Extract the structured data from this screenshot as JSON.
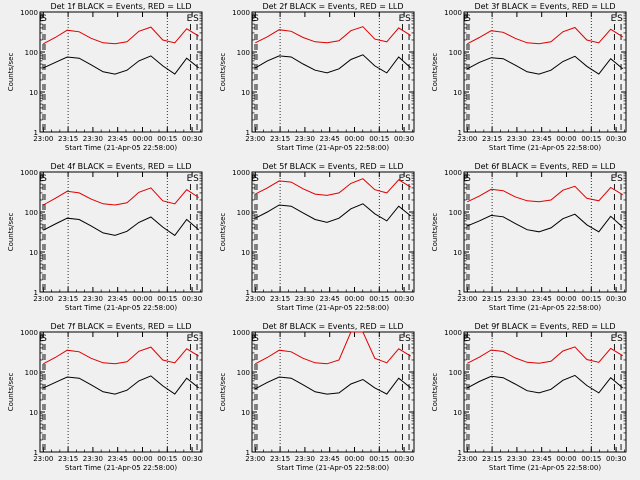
{
  "figure": {
    "background": "#f0f0f0",
    "events_color": "#000000",
    "lld_color": "#e00000"
  },
  "chart_data": [
    {
      "type": "line",
      "title": "Det 1f BLACK = Events, RED = LLD",
      "xlabel": "Start Time (21-Apr-05 22:58:00)",
      "ylabel": "Counts/sec",
      "yscale": "log",
      "ylim": [
        1,
        1000
      ],
      "x_ticks": [
        "23:00",
        "23:15",
        "23:30",
        "23:45",
        "00:00",
        "00:15",
        "00:30"
      ],
      "y_ticks": [
        "1",
        "10",
        "100",
        "1000"
      ],
      "markers": [
        {
          "label": "E",
          "time": "22:58"
        },
        {
          "label": "S",
          "time": "23:01"
        },
        {
          "label": "E",
          "time": "00:29"
        },
        {
          "label": "S",
          "time": "00:33"
        }
      ],
      "series": [
        {
          "name": "Events",
          "values": [
            40,
            55,
            75,
            70,
            48,
            32,
            28,
            35,
            60,
            80,
            45,
            28,
            70,
            40
          ]
        },
        {
          "name": "LLD",
          "values": [
            160,
            230,
            350,
            320,
            220,
            170,
            160,
            180,
            330,
            420,
            200,
            170,
            380,
            250
          ]
        }
      ]
    },
    {
      "type": "line",
      "title": "Det 2f BLACK = Events, RED = LLD",
      "xlabel": "Start Time (21-Apr-05 22:58:00)",
      "ylabel": "Counts/sec",
      "yscale": "log",
      "ylim": [
        1,
        1000
      ],
      "x_ticks": [
        "23:00",
        "23:15",
        "23:30",
        "23:45",
        "00:00",
        "00:15",
        "00:30"
      ],
      "y_ticks": [
        "1",
        "10",
        "100",
        "1000"
      ],
      "markers": [
        {
          "label": "E",
          "time": "22:58"
        },
        {
          "label": "S",
          "time": "23:01"
        },
        {
          "label": "E",
          "time": "00:29"
        },
        {
          "label": "S",
          "time": "00:33"
        }
      ],
      "series": [
        {
          "name": "Events",
          "values": [
            40,
            60,
            80,
            75,
            50,
            35,
            30,
            38,
            65,
            85,
            45,
            30,
            75,
            40
          ]
        },
        {
          "name": "LLD",
          "values": [
            170,
            240,
            360,
            330,
            230,
            180,
            170,
            190,
            340,
            430,
            210,
            180,
            400,
            260
          ]
        }
      ]
    },
    {
      "type": "line",
      "title": "Det 3f BLACK = Events, RED = LLD",
      "xlabel": "Start Time (21-Apr-05 22:58:00)",
      "ylabel": "Counts/sec",
      "yscale": "log",
      "ylim": [
        1,
        1000
      ],
      "x_ticks": [
        "23:00",
        "23:15",
        "23:30",
        "23:45",
        "00:00",
        "00:15",
        "00:30"
      ],
      "y_ticks": [
        "1",
        "10",
        "100",
        "1000"
      ],
      "markers": [
        {
          "label": "E",
          "time": "22:58"
        },
        {
          "label": "S",
          "time": "23:01"
        },
        {
          "label": "E",
          "time": "00:29"
        },
        {
          "label": "S",
          "time": "00:33"
        }
      ],
      "series": [
        {
          "name": "Events",
          "values": [
            38,
            55,
            72,
            68,
            47,
            32,
            28,
            35,
            58,
            78,
            44,
            28,
            68,
            38
          ]
        },
        {
          "name": "LLD",
          "values": [
            160,
            230,
            340,
            310,
            220,
            170,
            160,
            180,
            320,
            410,
            200,
            170,
            370,
            240
          ]
        }
      ]
    },
    {
      "type": "line",
      "title": "Det 4f BLACK = Events, RED = LLD",
      "xlabel": "Start Time (21-Apr-05 22:58:00)",
      "ylabel": "Counts/sec",
      "yscale": "log",
      "ylim": [
        1,
        1000
      ],
      "x_ticks": [
        "23:00",
        "23:15",
        "23:30",
        "23:45",
        "00:00",
        "00:15",
        "00:30"
      ],
      "y_ticks": [
        "1",
        "10",
        "100",
        "1000"
      ],
      "markers": [
        {
          "label": "E",
          "time": "22:58"
        },
        {
          "label": "S",
          "time": "23:01"
        },
        {
          "label": "E",
          "time": "00:29"
        },
        {
          "label": "S",
          "time": "00:33"
        }
      ],
      "series": [
        {
          "name": "Events",
          "values": [
            35,
            50,
            70,
            65,
            45,
            30,
            26,
            33,
            55,
            75,
            42,
            26,
            65,
            36
          ]
        },
        {
          "name": "LLD",
          "values": [
            150,
            220,
            330,
            300,
            210,
            160,
            150,
            170,
            310,
            400,
            190,
            160,
            360,
            230
          ]
        }
      ]
    },
    {
      "type": "line",
      "title": "Det 5f BLACK = Events, RED = LLD",
      "xlabel": "Start Time (21-Apr-05 22:58:00)",
      "ylabel": "Counts/sec",
      "yscale": "log",
      "ylim": [
        1,
        1000
      ],
      "x_ticks": [
        "23:00",
        "23:15",
        "23:30",
        "23:45",
        "00:00",
        "00:15",
        "00:30"
      ],
      "y_ticks": [
        "1",
        "10",
        "100",
        "1000"
      ],
      "markers": [
        {
          "label": "E",
          "time": "22:58"
        },
        {
          "label": "S",
          "time": "23:01"
        },
        {
          "label": "E",
          "time": "00:29"
        },
        {
          "label": "S",
          "time": "00:33"
        }
      ],
      "series": [
        {
          "name": "Events",
          "values": [
            70,
            100,
            150,
            140,
            95,
            65,
            55,
            70,
            120,
            160,
            90,
            60,
            140,
            80
          ]
        },
        {
          "name": "LLD",
          "values": [
            280,
            400,
            600,
            560,
            380,
            280,
            260,
            300,
            520,
            680,
            360,
            300,
            640,
            420
          ]
        }
      ]
    },
    {
      "type": "line",
      "title": "Det 6f BLACK = Events, RED = LLD",
      "xlabel": "Start Time (21-Apr-05 22:58:00)",
      "ylabel": "Counts/sec",
      "yscale": "log",
      "ylim": [
        1,
        1000
      ],
      "x_ticks": [
        "23:00",
        "23:15",
        "23:30",
        "23:45",
        "00:00",
        "00:15",
        "00:30"
      ],
      "y_ticks": [
        "1",
        "10",
        "100",
        "1000"
      ],
      "markers": [
        {
          "label": "E",
          "time": "22:58"
        },
        {
          "label": "S",
          "time": "23:01"
        },
        {
          "label": "E",
          "time": "00:29"
        },
        {
          "label": "S",
          "time": "00:33"
        }
      ],
      "series": [
        {
          "name": "Events",
          "values": [
            45,
            60,
            82,
            76,
            52,
            36,
            32,
            40,
            68,
            88,
            48,
            32,
            78,
            42
          ]
        },
        {
          "name": "LLD",
          "values": [
            180,
            250,
            370,
            340,
            240,
            190,
            180,
            200,
            350,
            440,
            220,
            190,
            410,
            270
          ]
        }
      ]
    },
    {
      "type": "line",
      "title": "Det 7f BLACK = Events, RED = LLD",
      "xlabel": "Start Time (21-Apr-05 22:58:00)",
      "ylabel": "Counts/sec",
      "yscale": "log",
      "ylim": [
        1,
        1000
      ],
      "x_ticks": [
        "23:00",
        "23:15",
        "23:30",
        "23:45",
        "00:00",
        "00:15",
        "00:30"
      ],
      "y_ticks": [
        "1",
        "10",
        "100",
        "1000"
      ],
      "markers": [
        {
          "label": "E",
          "time": "22:58"
        },
        {
          "label": "S",
          "time": "23:01"
        },
        {
          "label": "E",
          "time": "00:29"
        },
        {
          "label": "S",
          "time": "00:33"
        }
      ],
      "series": [
        {
          "name": "Events",
          "values": [
            40,
            55,
            75,
            70,
            48,
            32,
            28,
            35,
            60,
            80,
            45,
            28,
            70,
            40
          ]
        },
        {
          "name": "LLD",
          "values": [
            160,
            230,
            350,
            320,
            220,
            170,
            160,
            180,
            330,
            420,
            200,
            170,
            380,
            250
          ]
        }
      ]
    },
    {
      "type": "line",
      "title": "Det 8f BLACK = Events, RED = LLD",
      "xlabel": "Start Time (21-Apr-05 22:58:00)",
      "ylabel": "Counts/sec",
      "yscale": "log",
      "ylim": [
        1,
        1000
      ],
      "x_ticks": [
        "23:00",
        "23:15",
        "23:30",
        "23:45",
        "00:00",
        "00:15",
        "00:30"
      ],
      "y_ticks": [
        "1",
        "10",
        "100",
        "1000"
      ],
      "markers": [
        {
          "label": "E",
          "time": "22:58"
        },
        {
          "label": "S",
          "time": "23:01"
        },
        {
          "label": "E",
          "time": "00:29"
        },
        {
          "label": "S",
          "time": "00:33"
        }
      ],
      "series": [
        {
          "name": "Events",
          "values": [
            38,
            55,
            75,
            70,
            48,
            32,
            28,
            30,
            50,
            65,
            40,
            28,
            70,
            40
          ]
        },
        {
          "name": "LLD",
          "values": [
            160,
            230,
            350,
            320,
            220,
            170,
            160,
            200,
            1000,
            1000,
            220,
            170,
            380,
            250
          ]
        }
      ]
    },
    {
      "type": "line",
      "title": "Det 9f BLACK = Events, RED = LLD",
      "xlabel": "Start Time (21-Apr-05 22:58:00)",
      "ylabel": "Counts/sec",
      "yscale": "log",
      "ylim": [
        1,
        1000
      ],
      "x_ticks": [
        "23:00",
        "23:15",
        "23:30",
        "23:45",
        "00:00",
        "00:15",
        "00:30"
      ],
      "y_ticks": [
        "1",
        "10",
        "100",
        "1000"
      ],
      "markers": [
        {
          "label": "E",
          "time": "22:58"
        },
        {
          "label": "S",
          "time": "23:01"
        },
        {
          "label": "E",
          "time": "00:29"
        },
        {
          "label": "S",
          "time": "00:33"
        }
      ],
      "series": [
        {
          "name": "Events",
          "values": [
            40,
            58,
            78,
            72,
            50,
            34,
            30,
            37,
            62,
            82,
            46,
            30,
            72,
            40
          ]
        },
        {
          "name": "LLD",
          "values": [
            165,
            235,
            355,
            325,
            225,
            175,
            165,
            185,
            335,
            425,
            205,
            175,
            390,
            255
          ]
        }
      ]
    }
  ]
}
